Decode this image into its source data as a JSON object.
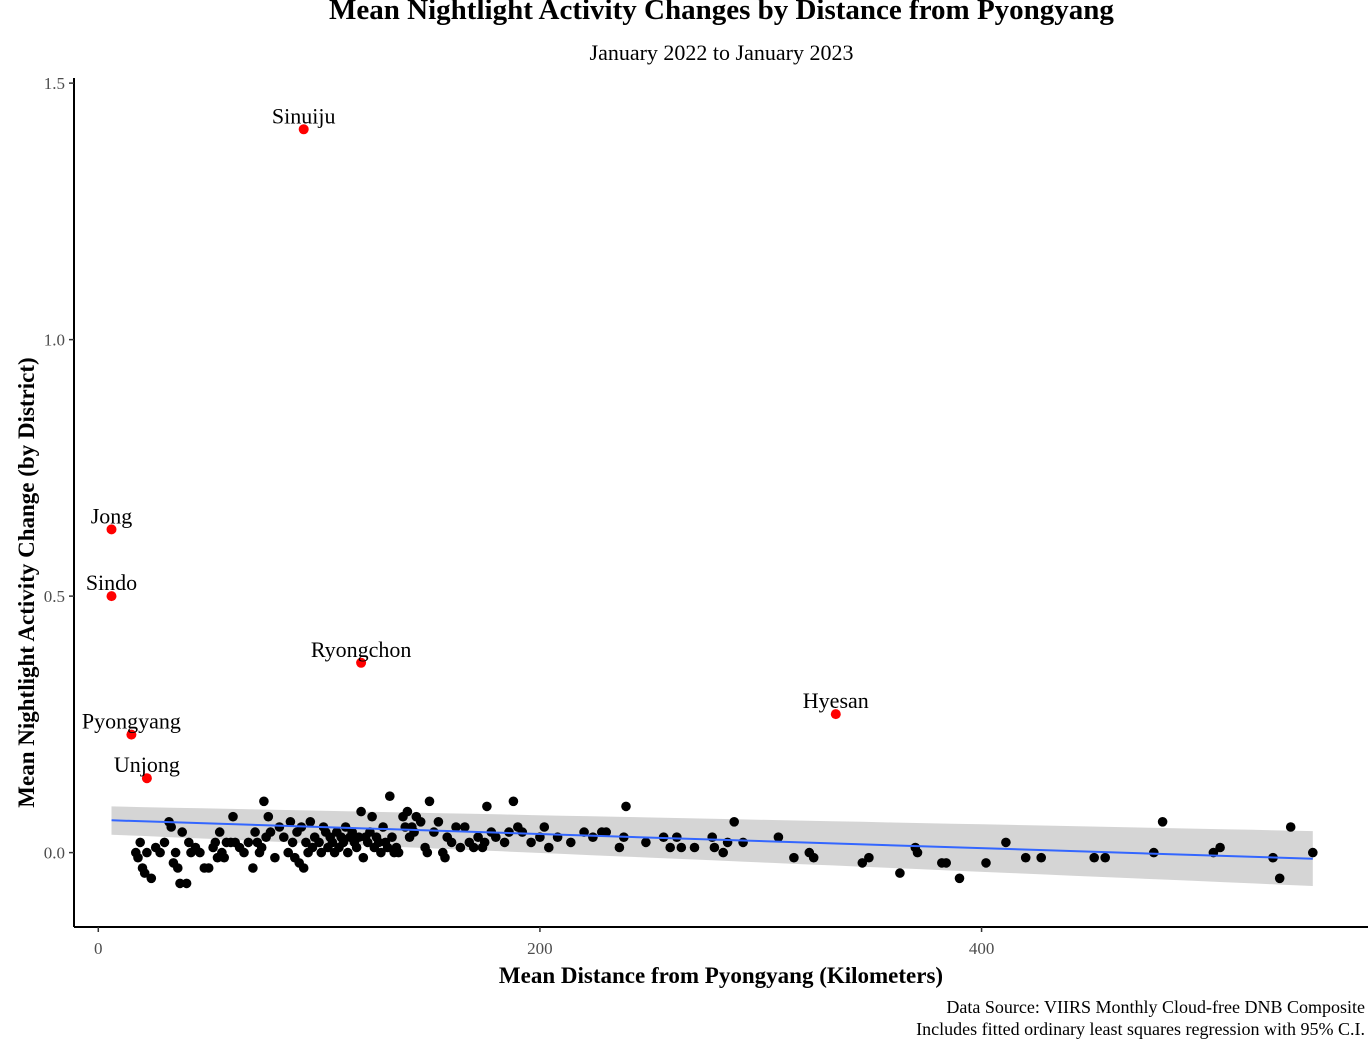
{
  "chart_data": {
    "type": "scatter",
    "title": "Mean Nightlight Activity Changes by Distance from Pyongyang",
    "subtitle": "January 2022 to January 2023",
    "xlabel": "Mean Distance from Pyongyang (Kilometers)",
    "ylabel": "Mean Nightlight Activity Change (by District)",
    "xlim": [
      -11,
      575
    ],
    "ylim": [
      -0.145,
      1.51
    ],
    "x_ticks": [
      0,
      200,
      400
    ],
    "x_tick_labels": [
      "0",
      "200",
      "400"
    ],
    "y_ticks": [
      0.0,
      0.5,
      1.0,
      1.5
    ],
    "y_tick_labels": [
      "0.0",
      "0.5",
      "1.0",
      "1.5"
    ],
    "grid": false,
    "caption": [
      "Data Source: VIIRS Monthly Cloud-free DNB Composite",
      "Includes fitted ordinary least squares regression with 95% C.I."
    ],
    "labeled_points": [
      {
        "name": "Sinuiju",
        "x": 93,
        "y": 1.41
      },
      {
        "name": "Jong",
        "x": 6,
        "y": 0.63
      },
      {
        "name": "Sindo",
        "x": 6,
        "y": 0.5
      },
      {
        "name": "Ryongchon",
        "x": 119,
        "y": 0.37
      },
      {
        "name": "Hyesan",
        "x": 334,
        "y": 0.27
      },
      {
        "name": "Pyongyang",
        "x": 15,
        "y": 0.23
      },
      {
        "name": "Unjong",
        "x": 22,
        "y": 0.145
      }
    ],
    "highlight_color": "#ff0000",
    "point_color": "#000000",
    "regression": {
      "x_start": 6,
      "x_end": 550,
      "fit": [
        0.063,
        -0.012
      ],
      "ci_lower": [
        0.035,
        -0.065
      ],
      "ci_upper": [
        0.09,
        0.042
      ],
      "line_color": "#3366ff",
      "band_color": "#d3d3d3"
    },
    "points": [
      [
        17,
        0.0
      ],
      [
        18,
        -0.01
      ],
      [
        19,
        0.02
      ],
      [
        20,
        -0.03
      ],
      [
        21,
        -0.04
      ],
      [
        22,
        0.0
      ],
      [
        24,
        -0.05
      ],
      [
        26,
        0.01
      ],
      [
        28,
        0.0
      ],
      [
        30,
        0.02
      ],
      [
        32,
        0.06
      ],
      [
        33,
        0.05
      ],
      [
        34,
        -0.02
      ],
      [
        35,
        0.0
      ],
      [
        36,
        -0.03
      ],
      [
        37,
        -0.06
      ],
      [
        38,
        0.04
      ],
      [
        40,
        -0.06
      ],
      [
        41,
        0.02
      ],
      [
        42,
        0.0
      ],
      [
        44,
        0.01
      ],
      [
        46,
        0.0
      ],
      [
        48,
        -0.03
      ],
      [
        50,
        -0.03
      ],
      [
        52,
        0.01
      ],
      [
        53,
        0.02
      ],
      [
        54,
        -0.01
      ],
      [
        55,
        0.04
      ],
      [
        56,
        0.0
      ],
      [
        57,
        -0.01
      ],
      [
        58,
        0.02
      ],
      [
        60,
        0.02
      ],
      [
        61,
        0.07
      ],
      [
        62,
        0.02
      ],
      [
        64,
        0.01
      ],
      [
        66,
        0.0
      ],
      [
        68,
        0.02
      ],
      [
        70,
        -0.03
      ],
      [
        71,
        0.04
      ],
      [
        72,
        0.02
      ],
      [
        73,
        0.0
      ],
      [
        74,
        0.01
      ],
      [
        75,
        0.1
      ],
      [
        76,
        0.03
      ],
      [
        77,
        0.07
      ],
      [
        78,
        0.04
      ],
      [
        80,
        -0.01
      ],
      [
        82,
        0.05
      ],
      [
        84,
        0.03
      ],
      [
        86,
        0.0
      ],
      [
        87,
        0.06
      ],
      [
        88,
        0.02
      ],
      [
        89,
        -0.01
      ],
      [
        90,
        0.04
      ],
      [
        91,
        -0.02
      ],
      [
        92,
        0.05
      ],
      [
        93,
        -0.03
      ],
      [
        94,
        0.02
      ],
      [
        95,
        0.0
      ],
      [
        96,
        0.06
      ],
      [
        97,
        0.01
      ],
      [
        98,
        0.03
      ],
      [
        100,
        0.02
      ],
      [
        101,
        0.0
      ],
      [
        102,
        0.05
      ],
      [
        103,
        0.04
      ],
      [
        104,
        0.01
      ],
      [
        105,
        0.03
      ],
      [
        106,
        0.02
      ],
      [
        107,
        0.0
      ],
      [
        108,
        0.04
      ],
      [
        109,
        0.01
      ],
      [
        110,
        0.03
      ],
      [
        111,
        0.02
      ],
      [
        112,
        0.05
      ],
      [
        113,
        0.0
      ],
      [
        114,
        0.03
      ],
      [
        115,
        0.04
      ],
      [
        116,
        0.02
      ],
      [
        117,
        0.01
      ],
      [
        118,
        0.03
      ],
      [
        119,
        0.08
      ],
      [
        120,
        -0.01
      ],
      [
        121,
        0.03
      ],
      [
        122,
        0.02
      ],
      [
        123,
        0.04
      ],
      [
        124,
        0.07
      ],
      [
        125,
        0.01
      ],
      [
        126,
        0.03
      ],
      [
        127,
        0.02
      ],
      [
        128,
        0.0
      ],
      [
        129,
        0.05
      ],
      [
        130,
        0.02
      ],
      [
        131,
        0.01
      ],
      [
        132,
        0.11
      ],
      [
        133,
        0.03
      ],
      [
        134,
        0.0
      ],
      [
        135,
        0.01
      ],
      [
        136,
        0.0
      ],
      [
        138,
        0.07
      ],
      [
        139,
        0.05
      ],
      [
        140,
        0.08
      ],
      [
        141,
        0.03
      ],
      [
        142,
        0.05
      ],
      [
        143,
        0.04
      ],
      [
        144,
        0.07
      ],
      [
        146,
        0.06
      ],
      [
        148,
        0.01
      ],
      [
        149,
        0.0
      ],
      [
        150,
        0.1
      ],
      [
        152,
        0.04
      ],
      [
        154,
        0.06
      ],
      [
        156,
        0.0
      ],
      [
        157,
        -0.01
      ],
      [
        158,
        0.03
      ],
      [
        160,
        0.02
      ],
      [
        162,
        0.05
      ],
      [
        164,
        0.01
      ],
      [
        166,
        0.05
      ],
      [
        168,
        0.02
      ],
      [
        170,
        0.01
      ],
      [
        172,
        0.03
      ],
      [
        174,
        0.01
      ],
      [
        175,
        0.02
      ],
      [
        176,
        0.09
      ],
      [
        178,
        0.04
      ],
      [
        180,
        0.03
      ],
      [
        184,
        0.02
      ],
      [
        186,
        0.04
      ],
      [
        188,
        0.1
      ],
      [
        190,
        0.05
      ],
      [
        192,
        0.04
      ],
      [
        196,
        0.02
      ],
      [
        200,
        0.03
      ],
      [
        202,
        0.05
      ],
      [
        204,
        0.01
      ],
      [
        208,
        0.03
      ],
      [
        214,
        0.02
      ],
      [
        220,
        0.04
      ],
      [
        224,
        0.03
      ],
      [
        228,
        0.04
      ],
      [
        230,
        0.04
      ],
      [
        236,
        0.01
      ],
      [
        238,
        0.03
      ],
      [
        239,
        0.09
      ],
      [
        248,
        0.02
      ],
      [
        256,
        0.03
      ],
      [
        259,
        0.01
      ],
      [
        262,
        0.03
      ],
      [
        264,
        0.01
      ],
      [
        270,
        0.01
      ],
      [
        278,
        0.03
      ],
      [
        279,
        0.01
      ],
      [
        283,
        0.0
      ],
      [
        285,
        0.02
      ],
      [
        288,
        0.06
      ],
      [
        292,
        0.02
      ],
      [
        308,
        0.03
      ],
      [
        315,
        -0.01
      ],
      [
        322,
        0.0
      ],
      [
        324,
        -0.01
      ],
      [
        346,
        -0.02
      ],
      [
        349,
        -0.01
      ],
      [
        363,
        -0.04
      ],
      [
        370,
        0.01
      ],
      [
        371,
        0.0
      ],
      [
        382,
        -0.02
      ],
      [
        384,
        -0.02
      ],
      [
        390,
        -0.05
      ],
      [
        402,
        -0.02
      ],
      [
        411,
        0.02
      ],
      [
        420,
        -0.01
      ],
      [
        427,
        -0.01
      ],
      [
        451,
        -0.01
      ],
      [
        456,
        -0.01
      ],
      [
        478,
        0.0
      ],
      [
        482,
        0.06
      ],
      [
        505,
        0.0
      ],
      [
        508,
        0.01
      ],
      [
        532,
        -0.01
      ],
      [
        535,
        -0.05
      ],
      [
        540,
        0.05
      ],
      [
        550,
        0.0
      ]
    ]
  }
}
